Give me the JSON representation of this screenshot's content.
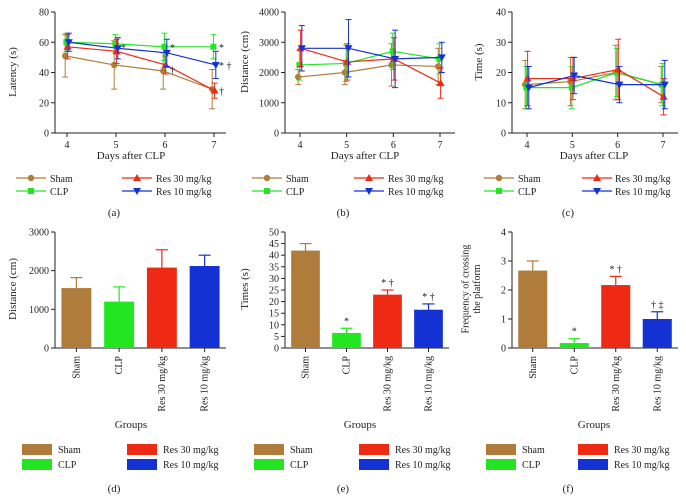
{
  "colors": {
    "sham": "#b07c3c",
    "clp": "#22e622",
    "res30": "#ee2a14",
    "res10": "#1432d4",
    "axis": "#222222"
  },
  "legend": {
    "sham": "Sham",
    "clp": "CLP",
    "res30": "Res 30 mg/kg",
    "res10": "Res 10 mg/kg"
  },
  "panels": {
    "a": "(a)",
    "b": "(b)",
    "c": "(c)",
    "d": "(d)",
    "e": "(e)",
    "f": "(f)"
  },
  "chart_data": [
    {
      "id": "a",
      "type": "line",
      "ylabel": "Latency (s)",
      "xlabel": "Days after CLP",
      "x": [
        4,
        5,
        6,
        7
      ],
      "ylim": [
        0,
        80
      ],
      "yticks": [
        0,
        20,
        40,
        60,
        80
      ],
      "series": [
        {
          "key": "sham",
          "name": "Sham",
          "marker": "circle",
          "values": [
            51,
            45,
            41,
            29
          ],
          "errors": [
            14,
            16,
            12,
            13
          ]
        },
        {
          "key": "clp",
          "name": "CLP",
          "marker": "square",
          "values": [
            60,
            59,
            57,
            57
          ],
          "errors": [
            6,
            6,
            9,
            8
          ]
        },
        {
          "key": "res30",
          "name": "Res 30 mg/kg",
          "marker": "triangle",
          "values": [
            57,
            54,
            45,
            28
          ],
          "errors": [
            8,
            8,
            6,
            5
          ]
        },
        {
          "key": "res10",
          "name": "Res 10 mg/kg",
          "marker": "triangle-down",
          "values": [
            60,
            56,
            53,
            45
          ],
          "errors": [
            6,
            7,
            9,
            9
          ]
        }
      ],
      "annotations": [
        {
          "x": 5,
          "y": 57,
          "text": "*"
        },
        {
          "x": 6,
          "y": 57,
          "text": "*"
        },
        {
          "x": 6,
          "y": 42,
          "text": "†"
        },
        {
          "x": 7,
          "y": 57,
          "text": "*"
        },
        {
          "x": 7,
          "y": 45,
          "text": "* †"
        },
        {
          "x": 7,
          "y": 28,
          "text": "†"
        }
      ]
    },
    {
      "id": "b",
      "type": "line",
      "ylabel": "Distance (cm)",
      "xlabel": "Days after CLP",
      "x": [
        4,
        5,
        6,
        7
      ],
      "ylim": [
        0,
        4000
      ],
      "yticks": [
        0,
        1000,
        2000,
        3000,
        4000
      ],
      "series": [
        {
          "key": "sham",
          "name": "Sham",
          "marker": "circle",
          "values": [
            1850,
            2000,
            2250,
            2200
          ],
          "errors": [
            250,
            400,
            700,
            600
          ]
        },
        {
          "key": "clp",
          "name": "CLP",
          "marker": "square",
          "values": [
            2250,
            2300,
            2700,
            2450
          ],
          "errors": [
            500,
            600,
            600,
            500
          ]
        },
        {
          "key": "res30",
          "name": "Res 30 mg/kg",
          "marker": "triangle",
          "values": [
            2800,
            2350,
            2450,
            1650
          ],
          "errors": [
            600,
            600,
            700,
            500
          ]
        },
        {
          "key": "res10",
          "name": "Res 10 mg/kg",
          "marker": "triangle-down",
          "values": [
            2800,
            2800,
            2450,
            2500
          ],
          "errors": [
            750,
            950,
            950,
            500
          ]
        }
      ],
      "annotations": []
    },
    {
      "id": "c",
      "type": "line",
      "ylabel": "Time (s)",
      "xlabel": "Days after CLP",
      "x": [
        4,
        5,
        6,
        7
      ],
      "ylim": [
        0,
        40
      ],
      "yticks": [
        0,
        10,
        20,
        30,
        40
      ],
      "series": [
        {
          "key": "sham",
          "name": "Sham",
          "marker": "circle",
          "values": [
            16,
            17,
            20,
            16
          ],
          "errors": [
            8,
            8,
            9,
            6
          ]
        },
        {
          "key": "clp",
          "name": "CLP",
          "marker": "square",
          "values": [
            15,
            15,
            20,
            16
          ],
          "errors": [
            7,
            7,
            8,
            7
          ]
        },
        {
          "key": "res30",
          "name": "Res 30 mg/kg",
          "marker": "triangle",
          "values": [
            18,
            18,
            21,
            12
          ],
          "errors": [
            9,
            7,
            10,
            6
          ]
        },
        {
          "key": "res10",
          "name": "Res 10 mg/kg",
          "marker": "triangle-down",
          "values": [
            15,
            19,
            16,
            16
          ],
          "errors": [
            7,
            6,
            6,
            8
          ]
        }
      ],
      "annotations": []
    },
    {
      "id": "d",
      "type": "bar",
      "ylabel": "Distance (cm)",
      "xlabel": "Groups",
      "categories": [
        "Sham",
        "CLP",
        "Res 30 mg/kg",
        "Res 10 mg/kg"
      ],
      "keys": [
        "sham",
        "clp",
        "res30",
        "res10"
      ],
      "values": [
        1550,
        1200,
        2080,
        2120
      ],
      "errors": [
        270,
        380,
        460,
        280
      ],
      "ylim": [
        0,
        3000
      ],
      "yticks": [
        0,
        1000,
        2000,
        3000
      ],
      "annotations": [
        "",
        "",
        "",
        ""
      ]
    },
    {
      "id": "e",
      "type": "bar",
      "ylabel": "Times (s)",
      "xlabel": "Groups",
      "categories": [
        "Sham",
        "CLP",
        "Res 30 mg/kg",
        "Res 10 mg/kg"
      ],
      "keys": [
        "sham",
        "clp",
        "res30",
        "res10"
      ],
      "values": [
        42,
        6.5,
        23,
        16.5
      ],
      "errors": [
        3,
        2,
        2,
        2.5
      ],
      "ylim": [
        0,
        50
      ],
      "yticks": [
        0,
        5,
        10,
        15,
        20,
        25,
        30,
        35,
        40,
        45,
        50
      ],
      "annotations": [
        "",
        "*",
        "* †",
        "* †"
      ]
    },
    {
      "id": "f",
      "type": "bar",
      "ylabel": "Frequency of crossing the platform",
      "xlabel": "Groups",
      "categories": [
        "Sham",
        "CLP",
        "Res 30 mg/kg",
        "Res 10 mg/kg"
      ],
      "keys": [
        "sham",
        "clp",
        "res30",
        "res10"
      ],
      "values": [
        2.67,
        0.17,
        2.17,
        1.0
      ],
      "errors": [
        0.33,
        0.15,
        0.3,
        0.25
      ],
      "ylim": [
        0,
        4
      ],
      "yticks": [
        0,
        1,
        2,
        3,
        4
      ],
      "annotations": [
        "",
        "*",
        "* †",
        "† ‡"
      ]
    }
  ]
}
